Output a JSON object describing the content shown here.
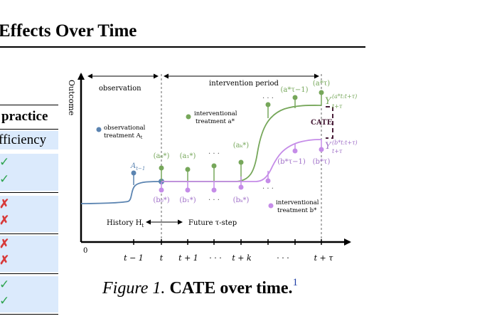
{
  "paper": {
    "section_title": "Effects Over Time",
    "table": {
      "header": "practice",
      "subheader": "fficiency",
      "marks": [
        "✓",
        "✓",
        "✗",
        "✗",
        "✗",
        "✗",
        "✓",
        "✓"
      ]
    },
    "figure": {
      "y_axis_label": "Outcome",
      "origin_label": "0",
      "observation_label": "observation",
      "intervention_period_label": "intervention period",
      "history_label": "History H",
      "history_sub": "t",
      "future_label": "Future τ-step",
      "observational_label_1": "observational",
      "observational_label_2": "treatment A",
      "observational_sub": "t",
      "interventional_a_1": "interventional",
      "interventional_a_2": "treatment a*",
      "interventional_b_1": "interventional",
      "interventional_b_2": "treatment b*",
      "cate_label": "CATE",
      "a_t_minus_1": "A",
      "a_t_minus_1_sub": "t−1",
      "a_labels": [
        "(a₀*)",
        "(a₁*)",
        "· · ·",
        "(aₖ*)",
        "· · ·",
        "(a*τ−1)",
        "(a*τ)"
      ],
      "b_labels": [
        "(b₀*)",
        "(b₁*)",
        "· · ·",
        "(bₖ*)",
        "· · ·",
        "(b*τ−1)",
        "(b*τ)"
      ],
      "y_a_main": "Y",
      "y_a_sup": "(a*t:t+τ)",
      "y_a_sub": "t+τ",
      "y_b_main": "Y",
      "y_b_sup": "(b*t:t+τ)",
      "y_b_sub": "t+τ",
      "x_ticks": [
        "t − 1",
        "t",
        "t + 1",
        "· · ·",
        "t + k",
        "· · ·",
        "t + τ"
      ],
      "colors": {
        "observational": "#5b84b1",
        "a_treatment": "#76a75a",
        "b_treatment": "#c58ce8",
        "cate": "#4a1f3a"
      }
    },
    "caption": {
      "label": "Figure 1.",
      "text": "CATE over time.",
      "footnote": "1"
    }
  }
}
